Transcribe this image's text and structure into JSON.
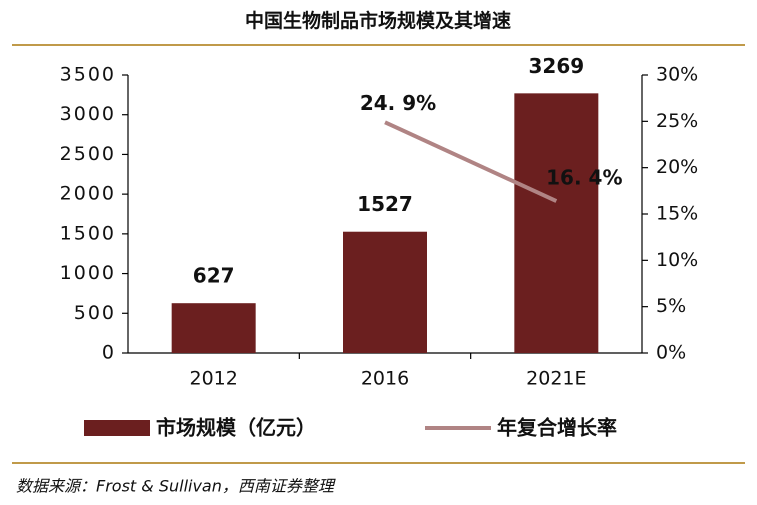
{
  "chart_data": {
    "type": "bar",
    "title": "中国生物制品市场规模及其增速",
    "categories": [
      "2012",
      "2016",
      "2021E"
    ],
    "series": [
      {
        "name": "市场规模（亿元）",
        "type": "bar",
        "color": "#6b1f1f",
        "values": [
          627,
          1527,
          3269
        ]
      },
      {
        "name": "年复合增长率",
        "type": "line",
        "axis": "y2",
        "color": "#b08484",
        "values": [
          null,
          24.9,
          16.4
        ],
        "value_labels": [
          null,
          "24. 9%",
          "16. 4%"
        ]
      }
    ],
    "ylim": [
      0,
      3500
    ],
    "yticks": [
      0,
      500,
      1000,
      1500,
      2000,
      2500,
      3000,
      3500
    ],
    "y2lim": [
      0,
      30
    ],
    "y2ticks": [
      {
        "value": 0,
        "label": "0%"
      },
      {
        "value": 5,
        "label": "5%"
      },
      {
        "value": 10,
        "label": "10%"
      },
      {
        "value": 15,
        "label": "15%"
      },
      {
        "value": 20,
        "label": "20%"
      },
      {
        "value": 25,
        "label": "25%"
      },
      {
        "value": 30,
        "label": "30%"
      }
    ],
    "source": "数据来源：Frost & Sullivan，西南证券整理"
  }
}
